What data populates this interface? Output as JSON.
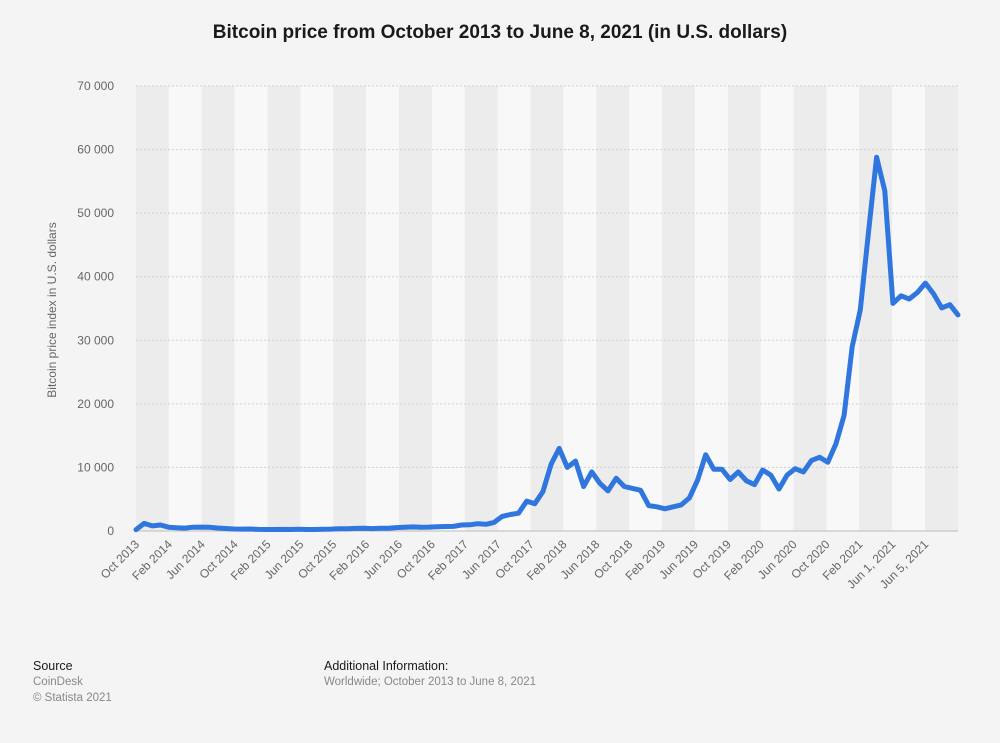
{
  "chart_data": {
    "type": "line",
    "title": "Bitcoin price from October 2013 to June 8, 2021 (in U.S. dollars)",
    "ylabel": "Bitcoin price index in U.S. dollars",
    "xlabel": "",
    "ylim": [
      0,
      70000
    ],
    "y_ticks": [
      0,
      10000,
      20000,
      30000,
      40000,
      50000,
      60000,
      70000
    ],
    "y_tick_labels": [
      "0",
      "10 000",
      "20 000",
      "30 000",
      "40 000",
      "50 000",
      "60 000",
      "70 000"
    ],
    "x_tick_labels": [
      "Oct 2013",
      "Feb 2014",
      "Jun 2014",
      "Oct 2014",
      "Feb 2015",
      "Jun 2015",
      "Oct 2015",
      "Feb 2016",
      "Jun 2016",
      "Oct 2016",
      "Feb 2017",
      "Jun 2017",
      "Oct 2017",
      "Feb 2018",
      "Jun 2018",
      "Oct 2018",
      "Feb 2019",
      "Jun 2019",
      "Oct 2019",
      "Feb 2020",
      "Jun 2020",
      "Oct 2020",
      "Feb 2021",
      "Jun 1, 2021",
      "Jun 5, 2021"
    ],
    "grid": true,
    "legend": "none",
    "series": [
      {
        "name": "Bitcoin price",
        "color": "#2f76df",
        "values": [
          198,
          1200,
          800,
          950,
          600,
          500,
          450,
          600,
          620,
          580,
          470,
          400,
          320,
          300,
          310,
          250,
          240,
          230,
          250,
          240,
          280,
          230,
          240,
          270,
          300,
          360,
          350,
          410,
          420,
          380,
          440,
          420,
          530,
          580,
          650,
          600,
          620,
          680,
          700,
          730,
          950,
          980,
          1150,
          1050,
          1350,
          2300,
          2600,
          2800,
          4700,
          4300,
          6200,
          10500,
          13000,
          10000,
          11000,
          7000,
          9300,
          7500,
          6300,
          8300,
          7000,
          6700,
          6400,
          4000,
          3800,
          3500,
          3800,
          4100,
          5200,
          8000,
          12000,
          9700,
          9700,
          8100,
          9300,
          7900,
          7300,
          9600,
          8800,
          6600,
          8800,
          9800,
          9300,
          11100,
          11600,
          10800,
          13700,
          18200,
          29000,
          34800,
          47000,
          58800,
          53500,
          35800,
          37000,
          36500,
          37500,
          39000,
          37300,
          35100,
          35600,
          34000
        ]
      }
    ]
  },
  "footer": {
    "source_heading": "Source",
    "source_name": "CoinDesk",
    "copyright": "© Statista 2021",
    "additional_heading": "Additional Information:",
    "additional_text": "Worldwide; October 2013 to June 8, 2021"
  }
}
